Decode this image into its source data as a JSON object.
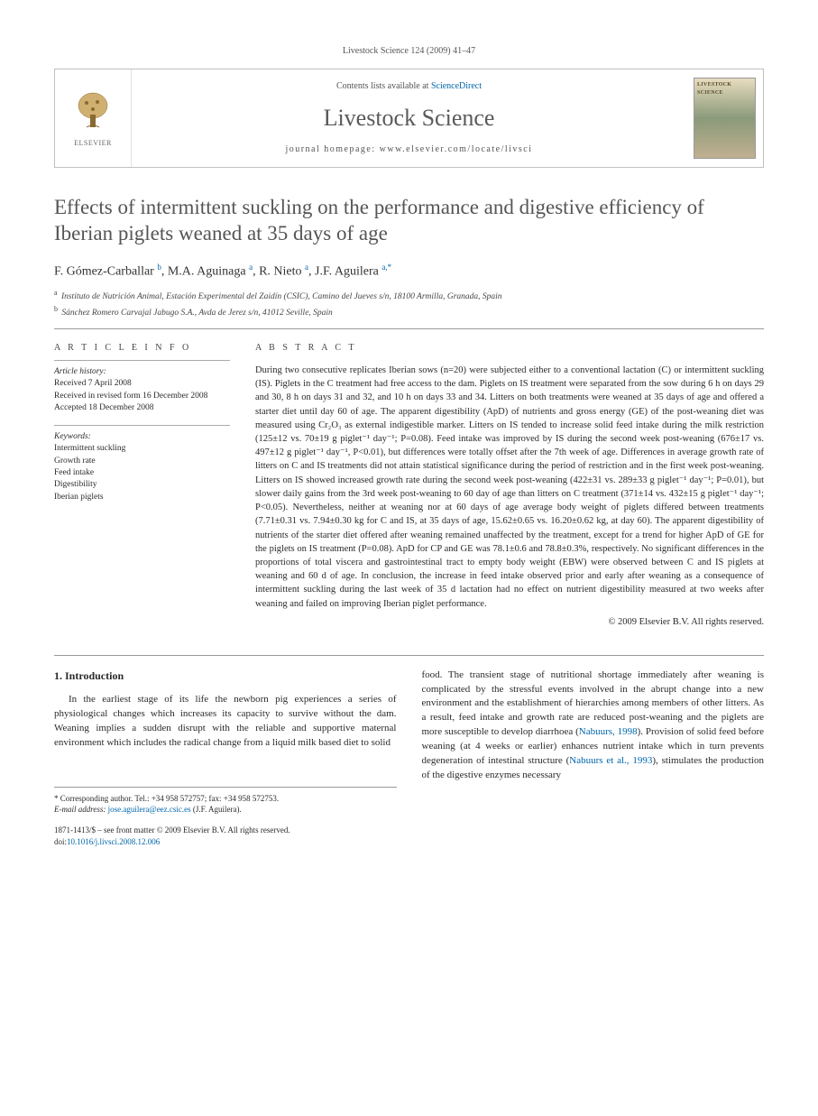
{
  "running_head": "Livestock Science 124 (2009) 41–47",
  "masthead": {
    "contents_prefix": "Contents lists available at ",
    "contents_link": "ScienceDirect",
    "journal": "Livestock Science",
    "homepage_prefix": "journal homepage: ",
    "homepage": "www.elsevier.com/locate/livsci",
    "elsevier_label": "ELSEVIER",
    "cover_label": "LIVESTOCK SCIENCE"
  },
  "title": "Effects of intermittent suckling on the performance and digestive efficiency of Iberian piglets weaned at 35 days of age",
  "authors_html": "F. Gómez-Carballar <sup>b</sup>, M.A. Aguinaga <sup>a</sup>, R. Nieto <sup>a</sup>, J.F. Aguilera <sup>a,</sup><sup class='star'>*</sup>",
  "affiliations": [
    {
      "sup": "a",
      "text": "Instituto de Nutrición Animal, Estación Experimental del Zaidín (CSIC), Camino del Jueves s/n, 18100 Armilla, Granada, Spain"
    },
    {
      "sup": "b",
      "text": "Sánchez Romero Carvajal Jabugo S.A., Avda de Jerez s/n, 41012 Seville, Spain"
    }
  ],
  "info": {
    "head": "A R T I C L E   I N F O",
    "history_label": "Article history:",
    "history": [
      "Received 7 April 2008",
      "Received in revised form 16 December 2008",
      "Accepted 18 December 2008"
    ],
    "keywords_label": "Keywords:",
    "keywords": [
      "Intermittent suckling",
      "Growth rate",
      "Feed intake",
      "Digestibility",
      "Iberian piglets"
    ]
  },
  "abstract": {
    "head": "A B S T R A C T",
    "text": "During two consecutive replicates Iberian sows (n=20) were subjected either to a conventional lactation (C) or intermittent suckling (IS). Piglets in the C treatment had free access to the dam. Piglets on IS treatment were separated from the sow during 6 h on days 29 and 30, 8 h on days 31 and 32, and 10 h on days 33 and 34. Litters on both treatments were weaned at 35 days of age and offered a starter diet until day 60 of age. The apparent digestibility (ApD) of nutrients and gross energy (GE) of the post-weaning diet was measured using Cr₂O₃ as external indigestible marker. Litters on IS tended to increase solid feed intake during the milk restriction (125±12 vs. 70±19 g piglet⁻¹ day⁻¹; P=0.08). Feed intake was improved by IS during the second week post-weaning (676±17 vs. 497±12 g piglet⁻¹ day⁻¹, P<0.01), but differences were totally offset after the 7th week of age. Differences in average growth rate of litters on C and IS treatments did not attain statistical significance during the period of restriction and in the first week post-weaning. Litters on IS showed increased growth rate during the second week post-weaning (422±31 vs. 289±33 g piglet⁻¹ day⁻¹; P=0.01), but slower daily gains from the 3rd week post-weaning to 60 day of age than litters on C treatment (371±14 vs. 432±15 g piglet⁻¹ day⁻¹; P<0.05). Nevertheless, neither at weaning nor at 60 days of age average body weight of piglets differed between treatments (7.71±0.31 vs. 7.94±0.30 kg for C and IS, at 35 days of age, 15.62±0.65 vs. 16.20±0.62 kg, at day 60). The apparent digestibility of nutrients of the starter diet offered after weaning remained unaffected by the treatment, except for a trend for higher ApD of GE for the piglets on IS treatment (P=0.08). ApD for CP and GE was 78.1±0.6 and 78.8±0.3%, respectively. No significant differences in the proportions of total viscera and gastrointestinal tract to empty body weight (EBW) were observed between C and IS piglets at weaning and 60 d of age. In conclusion, the increase in feed intake observed prior and early after weaning as a consequence of intermittent suckling during the last week of 35 d lactation had no effect on nutrient digestibility measured at two weeks after weaning and failed on improving Iberian piglet performance.",
    "copyright": "© 2009 Elsevier B.V. All rights reserved."
  },
  "intro": {
    "head": "1. Introduction",
    "left": "In the earliest stage of its life the newborn pig experiences a series of physiological changes which increases its capacity to survive without the dam. Weaning implies a sudden disrupt with the reliable and supportive maternal environment which includes the radical change from a liquid milk based diet to solid",
    "right_1": "food. The transient stage of nutritional shortage immediately after weaning is complicated by the stressful events involved in the abrupt change into a new environment and the establishment of hierarchies among members of other litters. As a result, feed intake and growth rate are reduced post-weaning and the piglets are more susceptible to develop diarrhoea (",
    "cite1": "Nabuurs, 1998",
    "right_2": "). Provision of solid feed before weaning (at 4 weeks or earlier) enhances nutrient intake which in turn prevents degeneration of intestinal structure (",
    "cite2": "Nabuurs et al., 1993",
    "right_3": "), stimulates the production of the digestive enzymes necessary"
  },
  "footnotes": {
    "corr_prefix": "* Corresponding author. Tel.: +34 958 572757; fax: +34 958 572753.",
    "email_label": "E-mail address: ",
    "email": "jose.aguilera@eez.csic.es",
    "email_suffix": " (J.F. Aguilera).",
    "issn": "1871-1413/$ – see front matter © 2009 Elsevier B.V. All rights reserved.",
    "doi_label": "doi:",
    "doi": "10.1016/j.livsci.2008.12.006"
  },
  "colors": {
    "link": "#0066aa",
    "heading_grey": "#555555",
    "text": "#2a2a2a",
    "rule": "#999999"
  }
}
